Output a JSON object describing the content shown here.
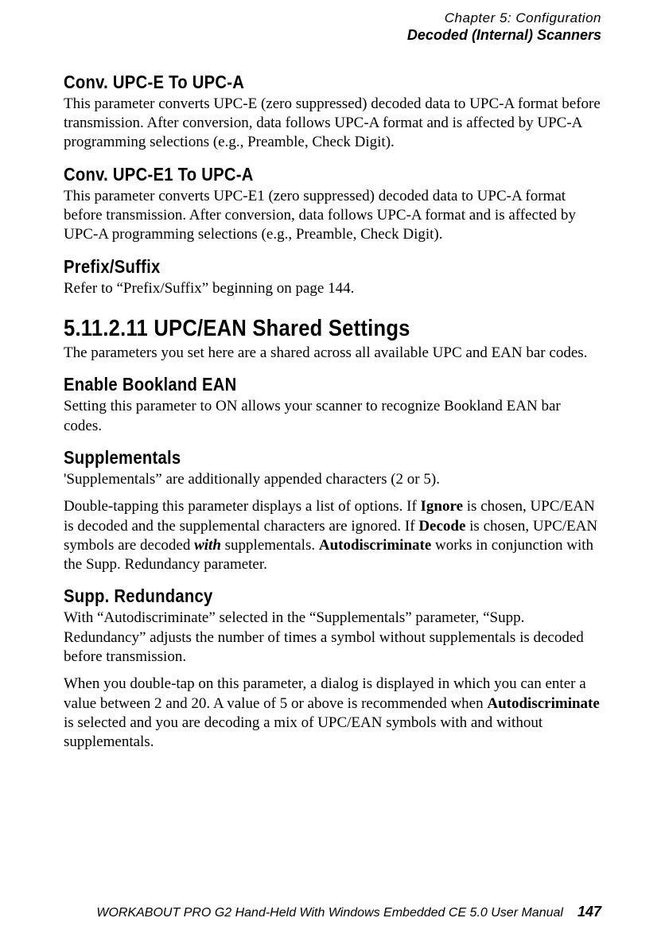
{
  "header": {
    "chapter": "Chapter 5: Configuration",
    "section": "Decoded (Internal) Scanners"
  },
  "sec1": {
    "title": "Conv. UPC-E To UPC-A",
    "body": "This parameter converts UPC-E (zero suppressed) decoded data to UPC-A format before transmission. After conversion, data follows UPC-A format and is affected by UPC-A programming selections (e.g., Preamble, Check Digit)."
  },
  "sec2": {
    "title": "Conv. UPC-E1 To UPC-A",
    "body": "This parameter converts UPC-E1 (zero suppressed) decoded data to UPC-A format before transmission. After conversion, data follows UPC-A format and is affected by UPC-A programming selections (e.g., Preamble, Check Digit)."
  },
  "sec3": {
    "title": "Prefix/Suffix",
    "body": "Refer to “Prefix/Suffix” beginning on page 144."
  },
  "sec4": {
    "title": "5.11.2.11  UPC/EAN Shared Settings",
    "body": "The parameters you set here are a shared across all available UPC and EAN bar codes."
  },
  "sec5": {
    "title": "Enable Bookland EAN",
    "body": "Setting this parameter to ON allows your scanner to recognize Bookland EAN bar codes."
  },
  "sec6": {
    "title": "Supplementals",
    "body1": "'Supplementals” are additionally appended characters (2 or 5).",
    "p2_pre": "Double-tapping this parameter displays a list of options. If ",
    "p2_ignore": "Ignore",
    "p2_mid1": " is chosen, UPC/EAN is decoded and the supplemental characters are ignored. If ",
    "p2_decode": "Decode",
    "p2_mid2": " is chosen, UPC/EAN symbols are decoded ",
    "p2_with": "with",
    "p2_mid3": " supplementals. ",
    "p2_auto": "Autodiscriminate",
    "p2_post": " works in conjunction with the Supp. Redundancy parameter."
  },
  "sec7": {
    "title": "Supp. Redundancy",
    "body1": "With “Autodiscriminate” selected in the “Supplementals” parameter, “Supp. Redundancy” adjusts the number of times a symbol without supplementals is decoded before transmission.",
    "p2_pre": "When you double-tap on this parameter, a dialog is displayed in which you can enter a value between 2 and 20. A value of 5 or above is recommended when ",
    "p2_auto": "Autodiscriminate",
    "p2_post": " is selected and you are decoding a mix of UPC/EAN symbols with and without supplementals."
  },
  "footer": {
    "text": "WORKABOUT PRO G2 Hand-Held With Windows Embedded CE 5.0 User Manual",
    "page": "147"
  }
}
